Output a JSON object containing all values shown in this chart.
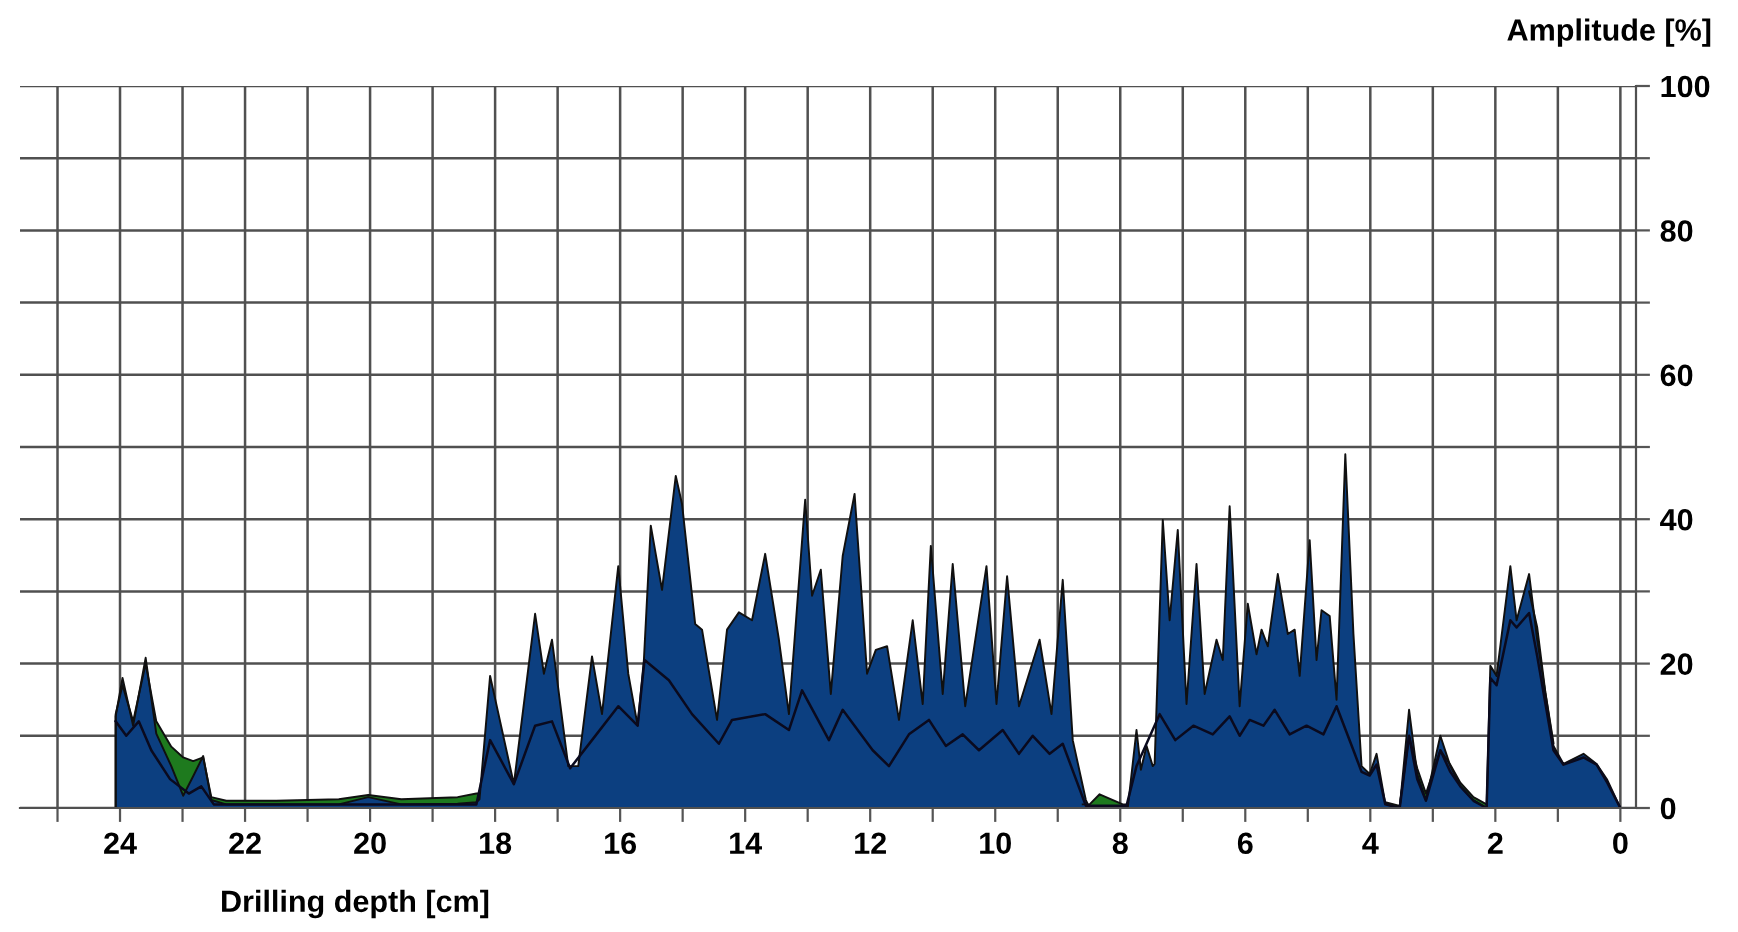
{
  "chart_data": {
    "type": "area",
    "xlabel": "Drilling depth [cm]",
    "ylabel": "Amplitude [%]",
    "xlim": [
      25.6,
      -0.25
    ],
    "ylim": [
      0,
      100
    ],
    "xticks": [
      {
        "value": 25,
        "label": null
      },
      24,
      {
        "value": 23,
        "label": null
      },
      22,
      {
        "value": 21,
        "label": null
      },
      20,
      {
        "value": 19,
        "label": null
      },
      18,
      {
        "value": 17,
        "label": null
      },
      16,
      {
        "value": 15,
        "label": null
      },
      14,
      {
        "value": 13,
        "label": null
      },
      12,
      {
        "value": 11,
        "label": null
      },
      10,
      {
        "value": 9,
        "label": null
      },
      8,
      {
        "value": 7,
        "label": null
      },
      6,
      {
        "value": 5,
        "label": null
      },
      4,
      {
        "value": 3,
        "label": null
      },
      2,
      {
        "value": 1,
        "label": null
      },
      0
    ],
    "yticks": [
      0,
      {
        "value": 10,
        "label": null
      },
      20,
      {
        "value": 30,
        "label": null
      },
      40,
      {
        "value": 50,
        "label": null
      },
      60,
      {
        "value": 70,
        "label": null
      },
      80,
      {
        "value": 90,
        "label": null
      },
      100
    ],
    "grid": true,
    "legend": false,
    "series": [
      {
        "color": "#1e7a1e",
        "x": [
          24.07,
          24.07,
          23.96,
          23.79,
          23.59,
          23.42,
          23.18,
          22.99,
          22.83,
          22.67,
          22.54,
          22.3,
          21.5,
          20.5,
          20.03,
          19.5,
          18.6,
          18.3,
          18.25,
          13,
          8.6,
          8.49,
          8.33,
          7.96,
          7.88,
          6,
          3.76,
          3.53,
          3.38,
          3.25,
          3.11,
          2.88,
          2.72,
          2.56,
          2.35,
          2.14,
          1.8,
          1.46,
          1.33,
          1.2,
          1.07
        ],
        "values": [
          0,
          13,
          17,
          12,
          20,
          12,
          8.5,
          7,
          6.5,
          7,
          1.5,
          1,
          1,
          1.2,
          1.8,
          1.2,
          1.5,
          2,
          2,
          null,
          0.5,
          0.5,
          1.9,
          0.5,
          0.5,
          null,
          0.8,
          0.3,
          10,
          5.5,
          2,
          8,
          6,
          3.5,
          1.5,
          0.5,
          null,
          30,
          25,
          16,
          9
        ]
      },
      {
        "color": "#0c3f80",
        "x": [
          24.07,
          24.07,
          23.96,
          23.79,
          23.59,
          23.42,
          23.18,
          22.99,
          22.83,
          22.67,
          22.54,
          22.3,
          21.5,
          20.5,
          20.03,
          19.5,
          18.6,
          18.3,
          18.25,
          18.08,
          17.7,
          17.36,
          17.22,
          17.09,
          16.83,
          16.67,
          16.45,
          16.29,
          16.03,
          15.87,
          15.72,
          15.62,
          15.51,
          15.33,
          15.11,
          15.01,
          14.8,
          14.69,
          14.45,
          14.29,
          14.1,
          13.89,
          13.68,
          13.46,
          13.3,
          13.04,
          12.93,
          12.79,
          12.63,
          12.44,
          12.25,
          12.05,
          11.91,
          11.73,
          11.54,
          11.32,
          11.16,
          11.03,
          10.84,
          10.68,
          10.48,
          10.14,
          9.98,
          9.81,
          9.62,
          9.29,
          9.1,
          8.92,
          8.76,
          8.55,
          8.49,
          8.33,
          7.96,
          7.88,
          7.74,
          7.67,
          7.58,
          7.48,
          7.45,
          7.32,
          7.21,
          7.08,
          6.94,
          6.78,
          6.65,
          6.46,
          6.36,
          6.25,
          6.09,
          5.96,
          5.82,
          5.74,
          5.64,
          5.48,
          5.32,
          5.21,
          5.13,
          4.97,
          4.86,
          4.78,
          4.65,
          4.54,
          4.4,
          4.27,
          4.14,
          4.01,
          3.9,
          3.76,
          3.53,
          3.38,
          3.25,
          3.11,
          2.88,
          2.72,
          2.56,
          2.35,
          2.14,
          2.08,
          1.98,
          1.76,
          1.66,
          1.46,
          1.33,
          1.07,
          0.91,
          0.59,
          0.38,
          0.21,
          0
        ],
        "values": [
          0,
          12.7,
          18,
          11.4,
          20.8,
          10.3,
          5.8,
          1.7,
          4.4,
          7.2,
          1.1,
          0.5,
          0.5,
          0.5,
          1.5,
          0.5,
          0.6,
          0.8,
          1.2,
          18.3,
          3.3,
          26.9,
          18.6,
          23.3,
          5.8,
          5.8,
          21,
          13,
          33.5,
          18.6,
          11.4,
          20.5,
          39.1,
          30.2,
          46,
          42.1,
          25.5,
          24.7,
          12.2,
          24.7,
          27.1,
          26,
          35.2,
          23.3,
          13,
          42.7,
          29.4,
          33,
          15.8,
          34.9,
          43.5,
          18.6,
          21.9,
          22.4,
          12.2,
          26,
          14.4,
          36.3,
          15.8,
          33.8,
          14.1,
          33.5,
          14.4,
          32.1,
          14.1,
          23.3,
          13,
          31.6,
          9.4,
          1.1,
          0,
          0,
          0.3,
          0,
          10.8,
          5.3,
          8.6,
          5.8,
          6.1,
          39.9,
          26,
          38.5,
          14.4,
          33.8,
          15.8,
          23.3,
          20.5,
          41.8,
          14.1,
          28.3,
          21.3,
          24.7,
          22.4,
          32.4,
          24.1,
          24.7,
          18.3,
          37.1,
          20.5,
          27.4,
          26.6,
          15,
          49,
          24.1,
          5.8,
          4.7,
          7.5,
          0.6,
          0,
          13.6,
          4.7,
          1.1,
          10,
          5.8,
          3,
          1.1,
          0,
          19.7,
          18.3,
          33.5,
          26,
          32.4,
          23.3,
          8.6,
          6.1,
          7.5,
          6.1,
          3.9,
          0
        ]
      },
      {
        "type": "line",
        "color": "#0a0a1e",
        "x": [
          24.07,
          23.9,
          23.7,
          23.5,
          23.2,
          22.9,
          22.7,
          22.5,
          20,
          18.3,
          18.08,
          17.7,
          17.36,
          17.09,
          16.8,
          16.45,
          16.03,
          15.72,
          15.61,
          15.22,
          14.85,
          14.42,
          14.21,
          13.68,
          13.3,
          13.09,
          12.66,
          12.44,
          11.96,
          11.7,
          11.38,
          11.06,
          10.79,
          10.52,
          10.26,
          9.88,
          9.62,
          9.4,
          9.13,
          8.92,
          8.55,
          7.9,
          7.74,
          7.37,
          7.12,
          6.83,
          6.52,
          6.25,
          6.09,
          5.93,
          5.71,
          5.53,
          5.29,
          5.02,
          4.75,
          4.54,
          4.27,
          4.14,
          4.01,
          3.9,
          3.76,
          3.53,
          3.38,
          3.25,
          3.11,
          2.88,
          2.72,
          2.56,
          2.35,
          2.14,
          2.08,
          1.98,
          1.76,
          1.66,
          1.46,
          1.33,
          1.07,
          0.91,
          0.59,
          0.38,
          0.21,
          0
        ],
        "values": [
          12,
          10,
          12,
          8,
          4,
          2,
          3,
          0.5,
          0.5,
          0.5,
          9.4,
          3.3,
          11.4,
          12,
          5.5,
          9.4,
          14.1,
          11.4,
          20.5,
          17.7,
          13,
          8.9,
          12.2,
          13,
          10.8,
          16.3,
          9.4,
          13.6,
          8,
          5.8,
          10.2,
          12.2,
          8.6,
          10.2,
          8,
          10.8,
          7.5,
          10,
          7.5,
          8.9,
          0.3,
          0.3,
          5.8,
          13,
          9.4,
          11.4,
          10.2,
          12.7,
          10,
          12.2,
          11.4,
          13.6,
          10.2,
          11.4,
          10.2,
          14.1,
          8,
          5,
          4.5,
          6,
          0.5,
          0,
          10,
          4,
          1,
          8,
          5,
          3,
          1,
          0,
          18,
          17,
          26,
          25,
          27,
          21,
          8,
          6,
          7,
          6,
          3.5,
          0
        ]
      }
    ]
  }
}
